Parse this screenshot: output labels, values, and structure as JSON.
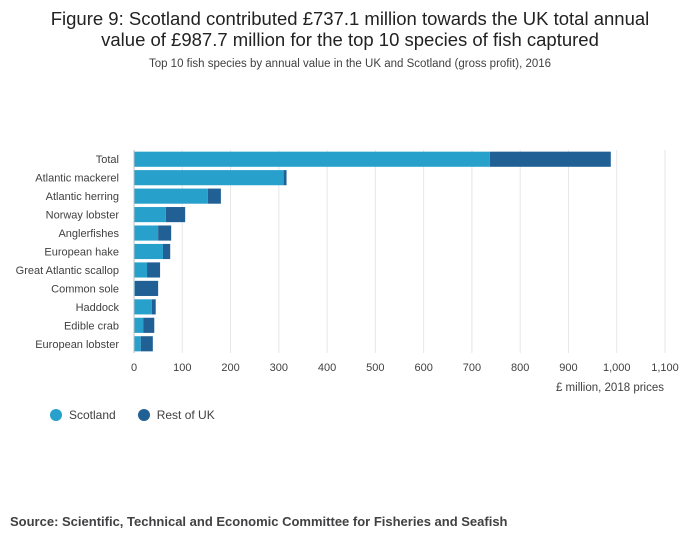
{
  "page": {
    "title_line1": "Figure 9: Scotland contributed £737.1 million towards the UK total annual",
    "title_line2": "value of £987.7 million for the top 10 species of fish captured",
    "subtitle": "Top 10 fish species by annual value in the UK and Scotland (gross profit), 2016",
    "source": "Source: Scientific, Technical and Economic Committee for Fisheries and Seafish"
  },
  "colors": {
    "scotland": "#27a0cc",
    "rest_of_uk": "#206095",
    "grid": "#e6e6e6",
    "text": "#414042"
  },
  "chart_data": {
    "type": "bar",
    "orientation": "horizontal",
    "stacked": true,
    "categories": [
      "Total",
      "Atlantic mackerel",
      "Atlantic herring",
      "Norway lobster",
      "Anglerfishes",
      "European hake",
      "Great Atlantic scallop",
      "Common sole",
      "Haddock",
      "Edible crab",
      "European lobster"
    ],
    "series": [
      {
        "name": "Scotland",
        "values": [
          737.1,
          310,
          153,
          66,
          50,
          60,
          27,
          2,
          37,
          19,
          14
        ]
      },
      {
        "name": "Rest of UK",
        "values": [
          250.6,
          6,
          27,
          40,
          27,
          15,
          27,
          48,
          8,
          23,
          25
        ]
      }
    ],
    "xlabel": "£ million, 2018 prices",
    "ylabel": "",
    "xlim": [
      0,
      1100
    ],
    "xticks": [
      0,
      100,
      200,
      300,
      400,
      500,
      600,
      700,
      800,
      900,
      1000,
      1100
    ],
    "xtick_labels": [
      "0",
      "100",
      "200",
      "300",
      "400",
      "500",
      "600",
      "700",
      "800",
      "900",
      "1,000",
      "1,100"
    ],
    "legend_position": "bottom-left",
    "grid": true
  }
}
